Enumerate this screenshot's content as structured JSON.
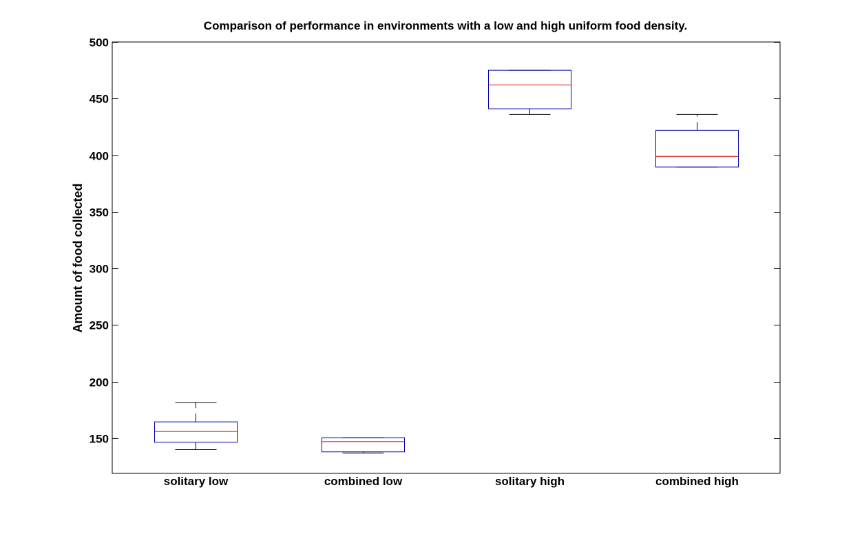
{
  "chart_data": {
    "type": "box",
    "title": "Comparison of performance in environments with a low and high uniform food density.",
    "xlabel": "",
    "ylabel": "Amount of food collected",
    "categories": [
      "solitary low",
      "combined low",
      "solitary high",
      "combined high"
    ],
    "ylim": [
      119,
      500
    ],
    "yticks": [
      150,
      200,
      250,
      300,
      350,
      400,
      450,
      500
    ],
    "grid": false,
    "legend": "none",
    "boxes": [
      {
        "category": "solitary low",
        "whisker_low": 140,
        "q1": 146.5,
        "median": 156,
        "q3": 164.5,
        "whisker_high": 181.5
      },
      {
        "category": "combined low",
        "whisker_low": 137,
        "q1": 138,
        "median": 147,
        "q3": 150.5,
        "whisker_high": 150.5
      },
      {
        "category": "solitary high",
        "whisker_low": 436,
        "q1": 441,
        "median": 462,
        "q3": 475,
        "whisker_high": 475
      },
      {
        "category": "combined high",
        "whisker_low": 389.5,
        "q1": 389.5,
        "median": 399,
        "q3": 422,
        "whisker_high": 436
      }
    ],
    "colors": {
      "box": "#0000b0",
      "median": "#d40000",
      "whisker": "#000000",
      "axes": "#000000"
    }
  }
}
